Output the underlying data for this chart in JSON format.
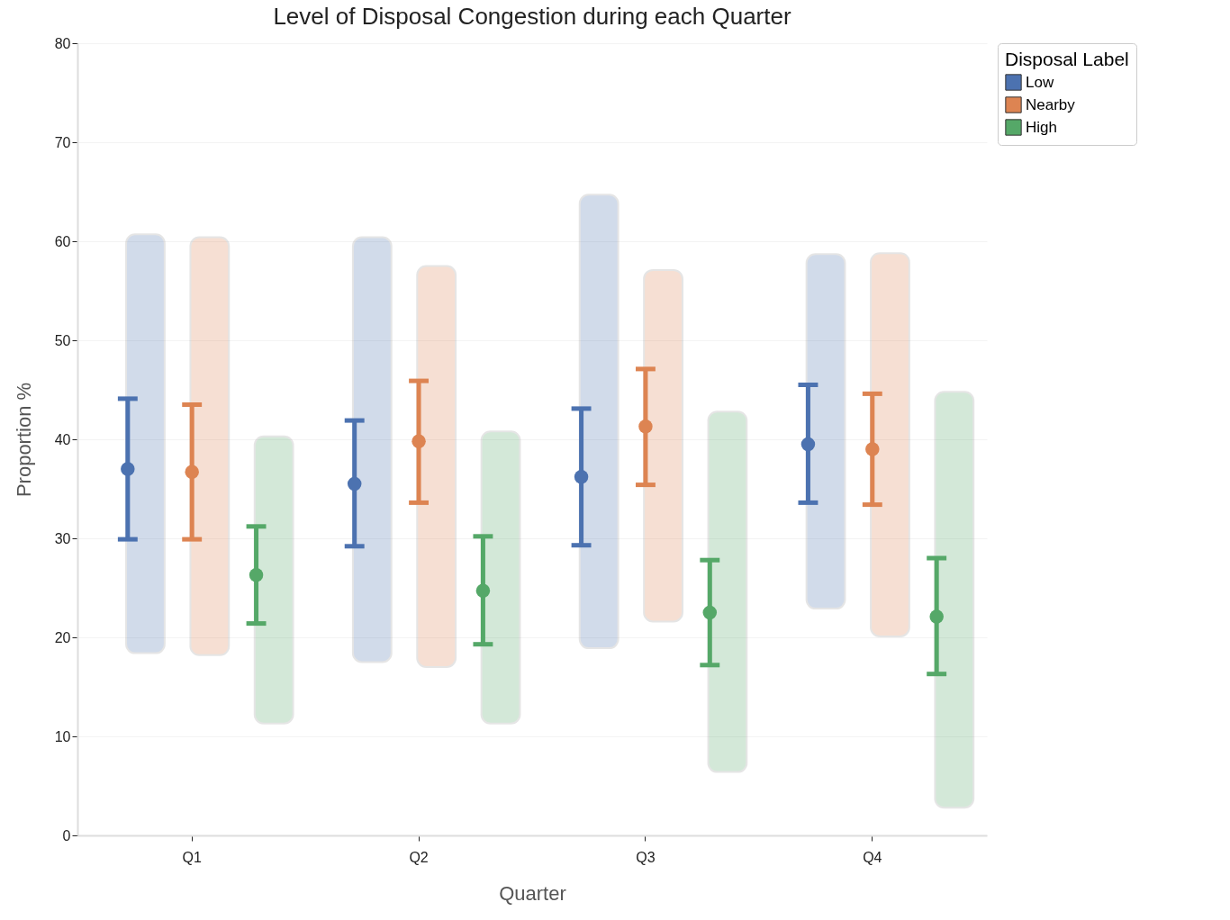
{
  "chart_data": {
    "type": "bar",
    "title": "Level of Disposal Congestion during each Quarter",
    "xlabel": "Quarter",
    "ylabel": "Proportion %",
    "legend_title": "Disposal Label",
    "categories": [
      "Q1",
      "Q2",
      "Q3",
      "Q4"
    ],
    "series": [
      {
        "name": "Low",
        "color": "#4c72b0",
        "base": [
          18.4,
          17.5,
          18.9,
          22.9
        ],
        "values": [
          42.3,
          42.9,
          45.8,
          35.8
        ]
      },
      {
        "name": "Nearby",
        "color": "#dd8452",
        "base": [
          18.2,
          17.0,
          21.6,
          20.1
        ],
        "values": [
          42.2,
          40.5,
          35.5,
          38.7
        ]
      },
      {
        "name": "High",
        "color": "#55a868",
        "base": [
          11.3,
          11.3,
          6.4,
          2.8
        ],
        "values": [
          29.0,
          29.5,
          36.4,
          42.0
        ]
      },
      {
        "type": "scatter",
        "color": "#4c72b0",
        "x": [
          "Q1",
          "Q2",
          "Q3",
          "Q4"
        ],
        "values": [
          37.0,
          35.5,
          36.2,
          39.5
        ],
        "errors": [
          [
            29.9,
            44.1
          ],
          [
            29.2,
            41.9
          ],
          [
            29.3,
            43.1
          ],
          [
            33.6,
            45.5
          ]
        ]
      },
      {
        "type": "scatter",
        "color": "#dd8452",
        "x": [
          "Q1",
          "Q2",
          "Q3",
          "Q4"
        ],
        "values": [
          36.7,
          39.8,
          41.3,
          39.0
        ],
        "errors": [
          [
            29.9,
            43.5
          ],
          [
            33.6,
            45.9
          ],
          [
            35.4,
            47.1
          ],
          [
            33.4,
            44.6
          ]
        ]
      },
      {
        "type": "scatter",
        "color": "#55a868",
        "x": [
          "Q1",
          "Q2",
          "Q3",
          "Q4"
        ],
        "values": [
          26.3,
          24.7,
          22.5,
          22.1
        ],
        "errors": [
          [
            21.4,
            31.2
          ],
          [
            19.3,
            30.2
          ],
          [
            17.2,
            27.8
          ],
          [
            16.3,
            28.0
          ]
        ]
      }
    ],
    "ylim": [
      0,
      80
    ],
    "yticks": [
      0,
      10,
      20,
      30,
      40,
      50,
      60,
      70,
      80
    ],
    "grid": "y",
    "legend": "right",
    "marker": "circle"
  }
}
